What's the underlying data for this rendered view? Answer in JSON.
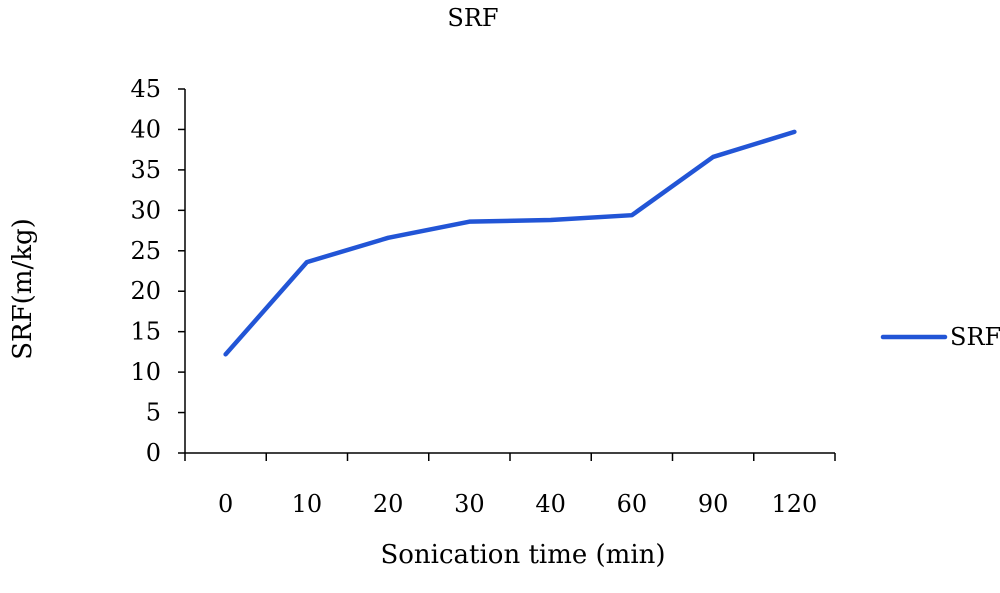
{
  "chart_data": {
    "type": "line",
    "title": "SRF",
    "xlabel": "Sonication time (min)",
    "ylabel": "SRF(m/kg)",
    "categories": [
      "0",
      "10",
      "20",
      "30",
      "40",
      "60",
      "90",
      "120"
    ],
    "series": [
      {
        "name": "SRF",
        "values": [
          12.2,
          23.6,
          26.6,
          28.6,
          28.8,
          29.4,
          36.6,
          39.7
        ]
      }
    ],
    "ylim": [
      0,
      45
    ],
    "yticks": [
      "0",
      "5",
      "10",
      "15",
      "20",
      "25",
      "30",
      "35",
      "40",
      "45"
    ],
    "grid": false,
    "legend_position": "right",
    "colors": {
      "series": "#2255d6",
      "axis": "#000000"
    }
  }
}
